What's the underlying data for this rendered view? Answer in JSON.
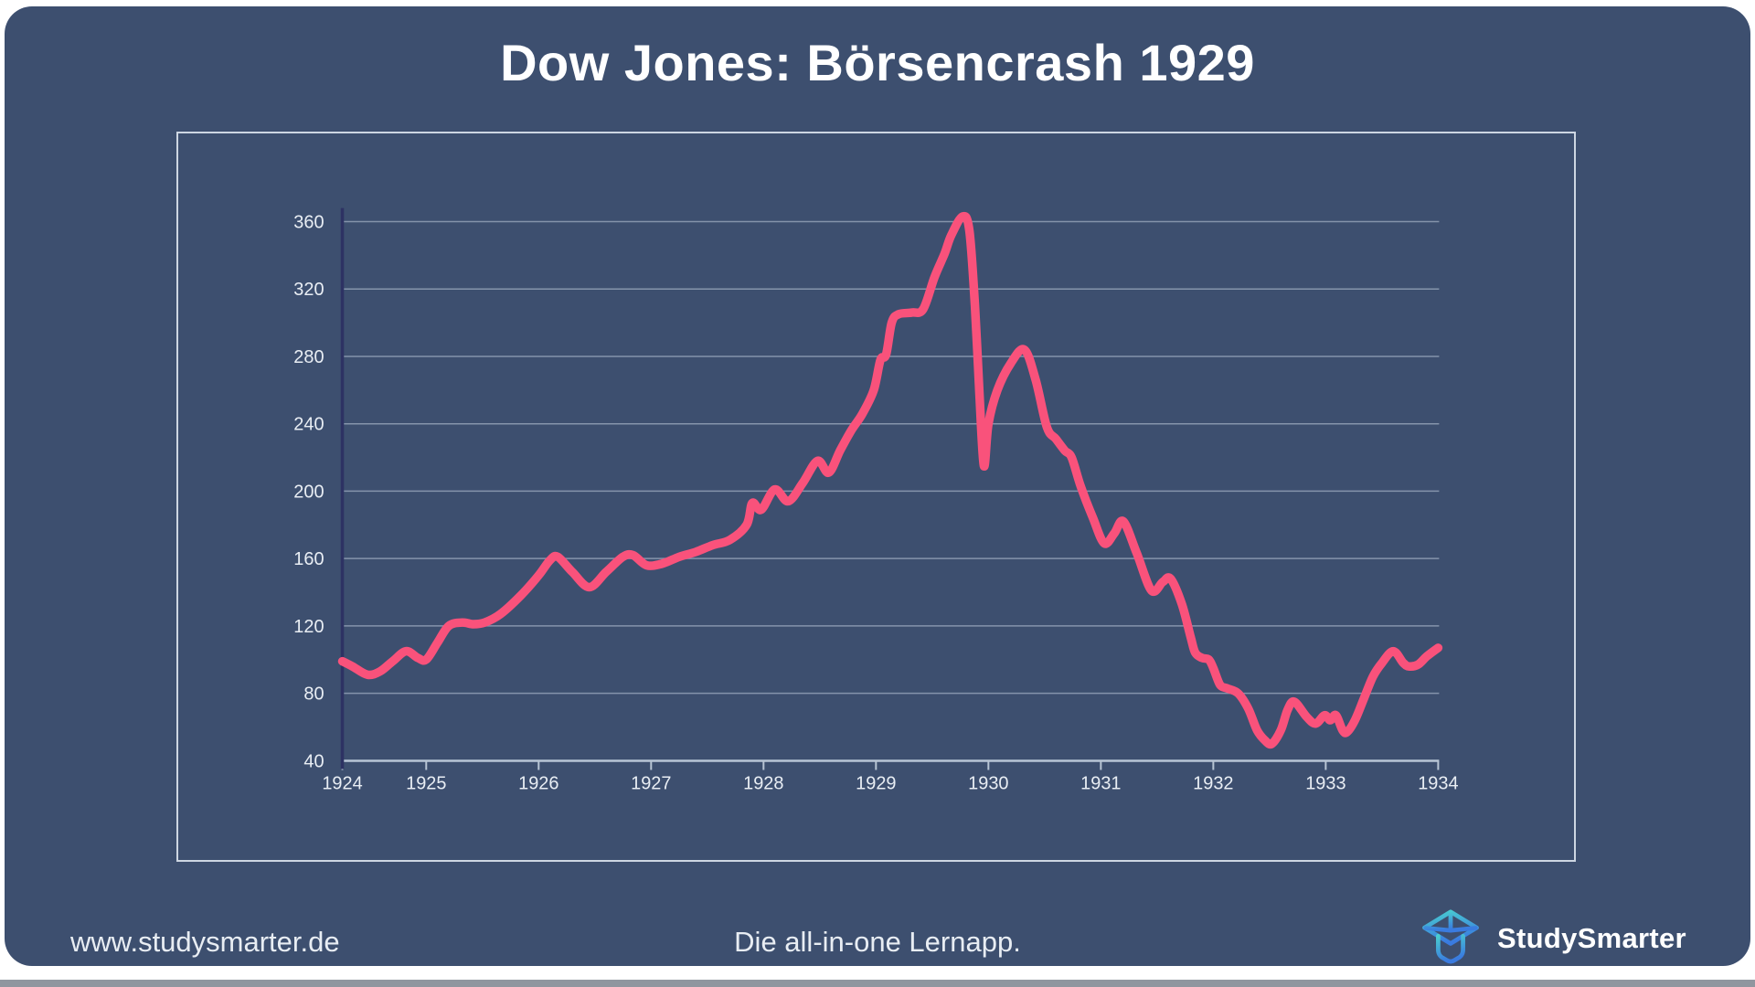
{
  "page": {
    "title": "Dow Jones: Börsencrash 1929"
  },
  "footer": {
    "website": "www.studysmarter.de",
    "tagline": "Die all-in-one Lernapp.",
    "brand": "StudySmarter"
  },
  "colors": {
    "card_bg": "#3d4f6f",
    "line": "#f9527b",
    "grid": "#b6c3d4",
    "axis": "#b8c5d5",
    "y_axis": "#2d3263",
    "label": "#e9eef4",
    "panel_border": "#cdd6e2",
    "logo_teal": "#49cdd0",
    "logo_blue": "#3a7bdf"
  },
  "chart_data": {
    "type": "line",
    "title": "Dow Jones: Börsencrash 1929",
    "series_name": "Dow Jones",
    "xlabel": "",
    "ylabel": "",
    "xlim": [
      1924,
      1934
    ],
    "ylim": [
      40,
      380
    ],
    "x_ticks": [
      1924,
      1925,
      1926,
      1927,
      1928,
      1929,
      1930,
      1931,
      1932,
      1933,
      1934
    ],
    "y_ticks": [
      360,
      320,
      280,
      240,
      200,
      160,
      120,
      80,
      40
    ],
    "grid": true,
    "legend": false,
    "x": [
      1924.0,
      1924.12,
      1924.3,
      1924.45,
      1924.6,
      1924.76,
      1924.9,
      1925.0,
      1925.1,
      1925.2,
      1925.32,
      1925.42,
      1925.52,
      1925.66,
      1925.84,
      1926.0,
      1926.1,
      1926.17,
      1926.3,
      1926.45,
      1926.6,
      1926.75,
      1926.84,
      1926.96,
      1927.1,
      1927.25,
      1927.4,
      1927.55,
      1927.7,
      1927.85,
      1927.9,
      1927.98,
      1928.1,
      1928.22,
      1928.35,
      1928.48,
      1928.58,
      1928.68,
      1928.78,
      1928.88,
      1928.98,
      1929.04,
      1929.09,
      1929.14,
      1929.2,
      1929.32,
      1929.42,
      1929.52,
      1929.61,
      1929.67,
      1929.77,
      1929.83,
      1929.88,
      1929.92,
      1929.96,
      1930.0,
      1930.08,
      1930.2,
      1930.32,
      1930.42,
      1930.52,
      1930.6,
      1930.68,
      1930.74,
      1930.82,
      1930.93,
      1931.03,
      1931.12,
      1931.2,
      1931.32,
      1931.45,
      1931.55,
      1931.62,
      1931.72,
      1931.8,
      1931.84,
      1931.9,
      1931.96,
      1932.0,
      1932.06,
      1932.12,
      1932.22,
      1932.31,
      1932.39,
      1932.46,
      1932.52,
      1932.6,
      1932.66,
      1932.72,
      1932.83,
      1932.91,
      1932.99,
      1933.04,
      1933.09,
      1933.15,
      1933.19,
      1933.26,
      1933.34,
      1933.42,
      1933.5,
      1933.6,
      1933.69,
      1933.74,
      1933.82,
      1933.9,
      1934.0
    ],
    "y": [
      99,
      96,
      91,
      93,
      99,
      105,
      101,
      100,
      110,
      120,
      122,
      121,
      122,
      127,
      138,
      150,
      159,
      161,
      152,
      143,
      152,
      161,
      162,
      156,
      157,
      161,
      164,
      168,
      171,
      180,
      193,
      189,
      201,
      194,
      205,
      218,
      211,
      224,
      236,
      246,
      260,
      278,
      281,
      300,
      305,
      306,
      308,
      327,
      341,
      352,
      363,
      355,
      310,
      258,
      215,
      240,
      260,
      276,
      284,
      266,
      238,
      231,
      224,
      220,
      203,
      184,
      169,
      175,
      182,
      163,
      141,
      146,
      148,
      133,
      113,
      104,
      101,
      100,
      95,
      85,
      83,
      80,
      71,
      58,
      52,
      50,
      58,
      70,
      75,
      66,
      62,
      67,
      64,
      67,
      58,
      57,
      64,
      77,
      90,
      98,
      105,
      98,
      96,
      97,
      102,
      107
    ]
  }
}
